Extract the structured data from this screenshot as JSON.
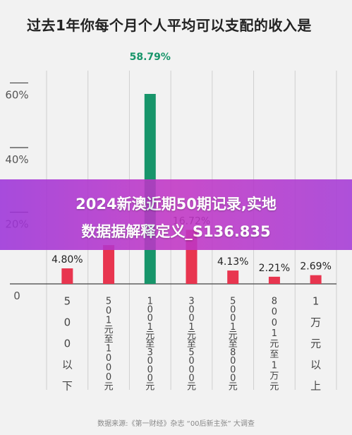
{
  "title": "过去1年你每个月个人平均可以支配的收入是",
  "footer": "数据来源:《第一财经》杂志 “00后新主张” 大调查",
  "banner": {
    "line1": "2024新澳近期50期记录,实地",
    "line2": "数据据解释定义_S136.835"
  },
  "chart_data": {
    "type": "bar",
    "categories": [
      "500以下",
      "501元至1000元",
      "1001元至3000元",
      "3001元至5000元",
      "5001元至8000元",
      "8001元至1万元",
      "1万元以上"
    ],
    "values": [
      4.8,
      12.0,
      58.79,
      16.72,
      4.13,
      2.21,
      2.69
    ],
    "data_labels": [
      "4.80%",
      "",
      "58.79%",
      "16.72%",
      "4.13%",
      "2.21%",
      "2.69%"
    ],
    "y_tick_labels": [
      "0",
      "20%",
      "40%",
      "60%"
    ],
    "y_ticks": [
      0,
      20,
      40,
      60
    ],
    "ylim": [
      0,
      66
    ],
    "grid": "vertical",
    "colors": {
      "default": "#e8354f",
      "highlight": "#17956a"
    },
    "highlight_index": 2
  }
}
